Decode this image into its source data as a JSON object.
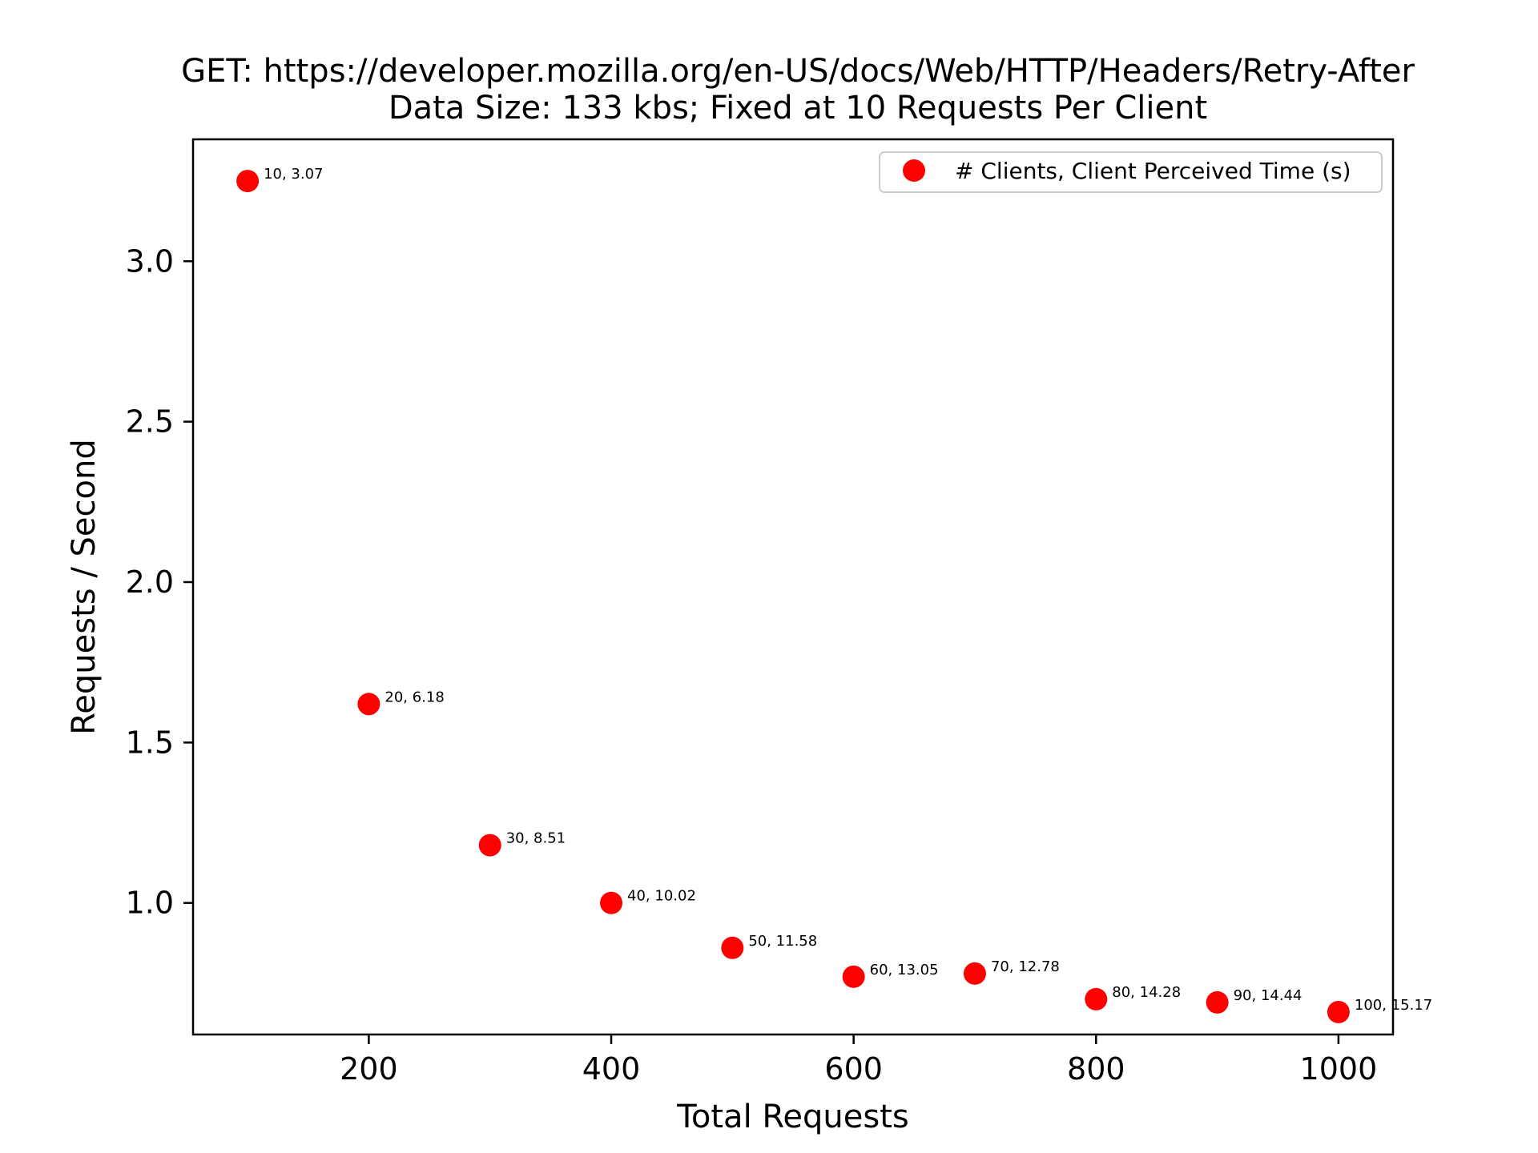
{
  "chart_data": {
    "type": "scatter",
    "title": "GET: https://developer.mozilla.org/en-US/docs/Web/HTTP/Headers/Retry-After",
    "subtitle": "Data Size: 133 kbs; Fixed at 10 Requests Per Client",
    "xlabel": "Total Requests",
    "ylabel": "Requests / Second",
    "xlim": [
      55,
      1045
    ],
    "ylim": [
      0.59,
      3.38
    ],
    "xticks": [
      200,
      400,
      600,
      800,
      1000
    ],
    "xtick_labels": [
      "200",
      "400",
      "600",
      "800",
      "1000"
    ],
    "yticks": [
      1.0,
      1.5,
      2.0,
      2.5,
      3.0
    ],
    "ytick_labels": [
      "1.0",
      "1.5",
      "2.0",
      "2.5",
      "3.0"
    ],
    "grid": false,
    "legend": {
      "position": "top-right"
    },
    "colors": {
      "marker": "#ff0000",
      "axes": "#000000"
    },
    "series": [
      {
        "name": "# Clients, Client Perceived Time (s)",
        "x": [
          100,
          200,
          300,
          400,
          500,
          600,
          700,
          800,
          900,
          1000
        ],
        "y": [
          3.25,
          1.62,
          1.18,
          1.0,
          0.86,
          0.77,
          0.78,
          0.7,
          0.69,
          0.66
        ],
        "labels": [
          "10, 3.07",
          "20, 6.18",
          "30, 8.51",
          "40, 10.02",
          "50, 11.58",
          "60, 13.05",
          "70, 12.78",
          "80, 14.28",
          "90, 14.44",
          "100, 15.17"
        ]
      }
    ]
  }
}
